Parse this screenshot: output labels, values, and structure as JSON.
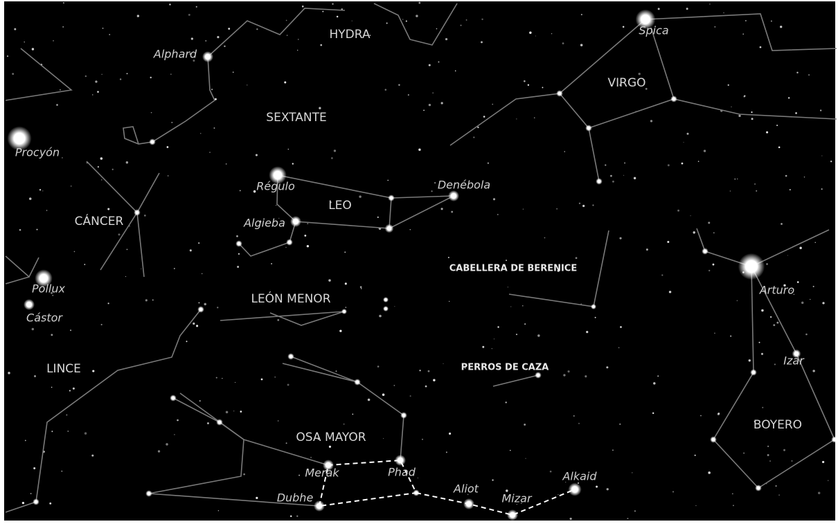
{
  "constellations": [
    "HYDRA",
    "SEXTANTE",
    "VIRGO",
    "LEO",
    "CÁNCER",
    "CABELLERA DE BERENICE",
    "LEÓN MENOR",
    "LINCE",
    "PERROS DE CAZA",
    "OSA MAYOR",
    "BOYERO"
  ],
  "stars": [
    "Alphard",
    "Spica",
    "Procyón",
    "Régulo",
    "Denébola",
    "Algieba",
    "Pollux",
    "Cástor",
    "Arturo",
    "Izar",
    "Merak",
    "Phad",
    "Aliot",
    "Alkaid",
    "Mizar",
    "Dubhe"
  ]
}
